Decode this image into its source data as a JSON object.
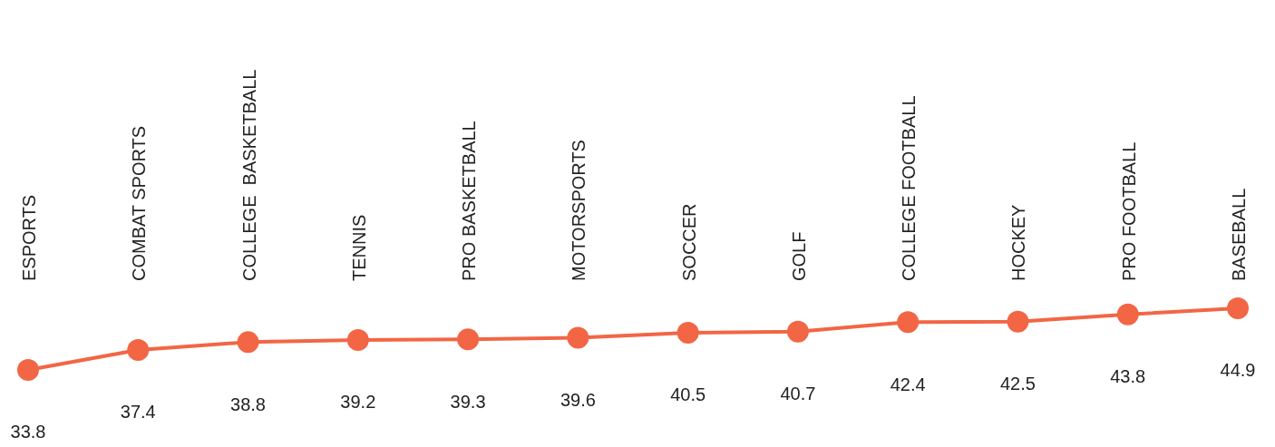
{
  "chart_data": {
    "type": "line",
    "categories": [
      "ESPORTS",
      "COMBAT SPORTS",
      "COLLEGE  BASKETBALL",
      "TENNIS",
      "PRO BASKETBALL",
      "MOTORSPORTS",
      "SOCCER",
      "GOLF",
      "COLLEGE FOOTBALL",
      "HOCKEY",
      "PRO FOOTBALL",
      "BASEBALL"
    ],
    "series": [
      {
        "color": "#f26645",
        "values": [
          33.8,
          37.4,
          38.8,
          39.2,
          39.3,
          39.6,
          40.5,
          40.7,
          42.4,
          42.5,
          43.8,
          44.9
        ]
      }
    ],
    "data_labels": true,
    "marker": "circle",
    "line_style": "solid"
  }
}
